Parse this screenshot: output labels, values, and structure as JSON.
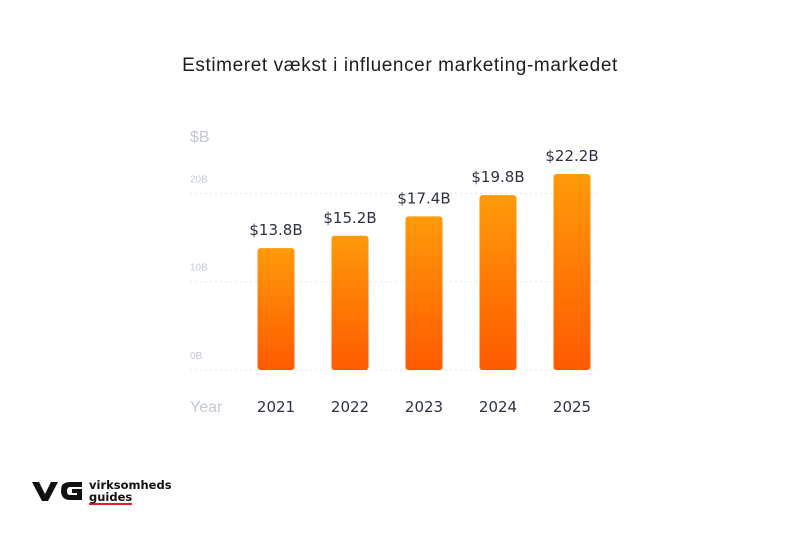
{
  "title": "Estimeret vækst i influencer marketing-markedet",
  "chart_data": {
    "type": "bar",
    "title": "Estimeret vækst i influencer marketing-markedet",
    "ylabel": "$B",
    "xlabel": "Year",
    "categories": [
      "2021",
      "2022",
      "2023",
      "2024",
      "2025"
    ],
    "values": [
      13.8,
      15.2,
      17.4,
      19.8,
      22.2
    ],
    "value_labels": [
      "$13.8B",
      "$15.2B",
      "$17.4B",
      "$19.8B",
      "$22.2B"
    ],
    "ylim": [
      0,
      20
    ],
    "yticks": [
      0,
      10,
      20
    ],
    "ytick_labels": [
      "0B",
      "10B",
      "20B"
    ],
    "grid": true,
    "bar_color_top": "#ff9a0a",
    "bar_color_bottom": "#ff5a00"
  },
  "logo": {
    "mark": "VG",
    "line1": "virksomheds",
    "line2": "guides"
  }
}
